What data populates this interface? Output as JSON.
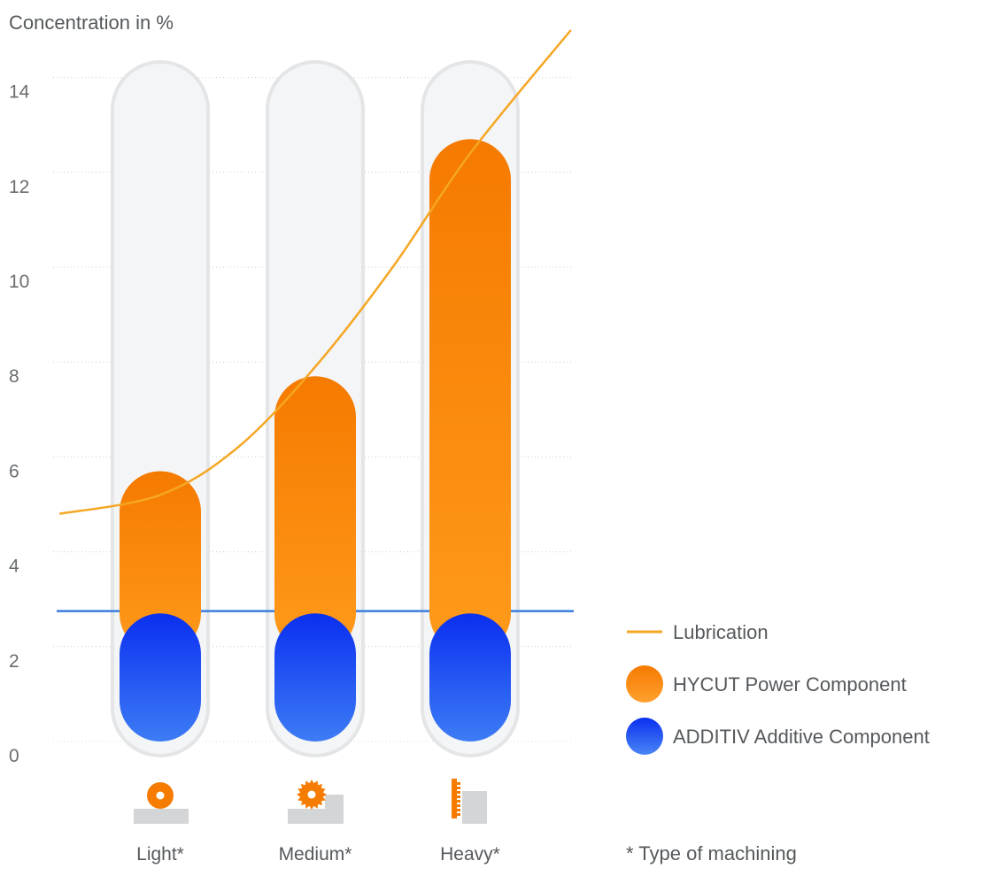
{
  "chart_data": {
    "type": "bar",
    "ylabel": "Concentration in %",
    "ylim": [
      0,
      14.8
    ],
    "yticks": [
      0,
      2,
      4,
      6,
      8,
      10,
      12,
      14
    ],
    "grid": true,
    "categories": [
      "Light*",
      "Medium*",
      "Heavy*"
    ],
    "category_icons": [
      "light-machining-icon",
      "medium-machining-icon",
      "heavy-machining-icon"
    ],
    "series": [
      {
        "name": "HYCUT Power Component",
        "values": [
          5.7,
          7.7,
          12.7
        ],
        "color": "#f57c00"
      },
      {
        "name": "ADDITIV Additive Component",
        "values": [
          2.7,
          2.7,
          2.7
        ],
        "color": "#1a4fff"
      }
    ],
    "lines": [
      {
        "name": "Lubrication",
        "color": "#f5a623",
        "x": [
          -0.65,
          0,
          0.5,
          1,
          1.5,
          2,
          2.65
        ],
        "y": [
          4.8,
          5.2,
          6.2,
          7.9,
          10.0,
          12.4,
          15.0
        ]
      }
    ],
    "threshold_line": {
      "y": 2.75,
      "color": "#3a7de0"
    },
    "legend": {
      "position": "right"
    },
    "footnote": "* Type of machining"
  }
}
